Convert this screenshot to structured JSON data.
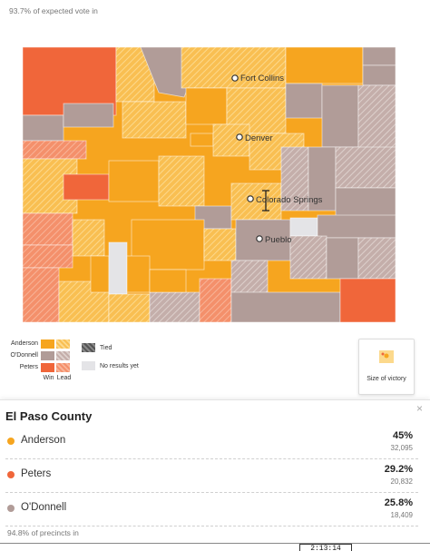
{
  "expected_vote": "93.7% of expected vote in",
  "colors": {
    "anderson_win": "#f6a51f",
    "anderson_lead": "#f9bf52",
    "odonnell_win": "#b19c98",
    "odonnell_lead": "#cbb8b3",
    "peters_win": "#f0663a",
    "peters_lead": "#f4906b",
    "tied": "#666666",
    "no_results": "#e4e4e7"
  },
  "map": {
    "cities": [
      "Fort Collins",
      "Denver",
      "Colorado Springs",
      "Pueblo"
    ]
  },
  "legend": {
    "anderson": "Anderson",
    "odonnell": "O'Donnell",
    "peters": "Peters",
    "win": "Win",
    "lead": "Lead",
    "tied": "Tied",
    "no_results": "No results yet"
  },
  "size_of_victory": "Size of victory",
  "panel": {
    "title": "El Paso County",
    "close": "×",
    "candidates": [
      {
        "name": "Anderson",
        "pct": "45%",
        "votes": "32,095",
        "color": "#f6a51f"
      },
      {
        "name": "Peters",
        "pct": "29.2%",
        "votes": "20,832",
        "color": "#f0663a"
      },
      {
        "name": "O'Donnell",
        "pct": "25.8%",
        "votes": "18,409",
        "color": "#b19c98"
      }
    ],
    "precincts": "94.8% of precincts in"
  },
  "timestamp": "2:13:14"
}
